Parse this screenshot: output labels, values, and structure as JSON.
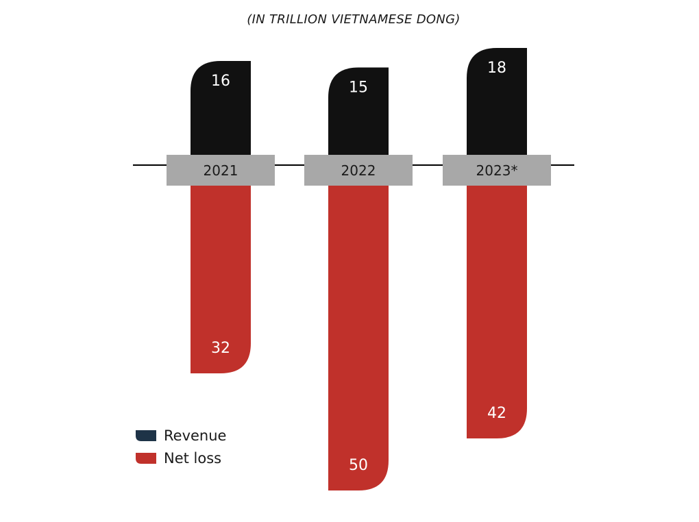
{
  "chart_data": {
    "type": "bar",
    "subtitle": "(IN TRILLION VIETNAMESE DONG)",
    "categories": [
      "2021",
      "2022",
      "2023*"
    ],
    "series": [
      {
        "name": "Revenue",
        "values": [
          16,
          15,
          18
        ],
        "color": "#111111",
        "direction": "up"
      },
      {
        "name": "Net loss",
        "values": [
          32,
          50,
          42
        ],
        "color": "#c0312b",
        "direction": "down"
      }
    ],
    "legend_swatch_colors": [
      "#1e3347",
      "#c0312b"
    ],
    "category_box_color": "#a8a8a8",
    "legend_position": "bottom-left"
  }
}
